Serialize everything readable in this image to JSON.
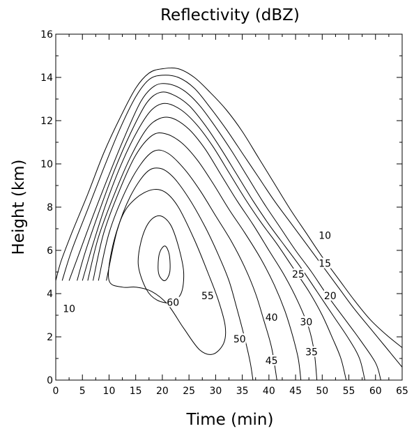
{
  "chart_data": {
    "type": "contour",
    "title": "Reflectivity (dBZ)",
    "xlabel": "Time (min)",
    "ylabel": "Height (km)",
    "xlim": [
      0,
      65
    ],
    "ylim": [
      0,
      16
    ],
    "xticks": [
      "0",
      "5",
      "10",
      "15",
      "20",
      "25",
      "30",
      "35",
      "40",
      "45",
      "50",
      "55",
      "60",
      "65"
    ],
    "yticks": [
      "0",
      "2",
      "4",
      "6",
      "8",
      "10",
      "12",
      "14",
      "16"
    ],
    "levels": [
      10,
      15,
      20,
      25,
      30,
      35,
      40,
      45,
      50,
      55,
      60,
      65
    ],
    "contours": [
      {
        "level": 10,
        "points": [
          [
            0,
            4.6
          ],
          [
            1,
            5.5
          ],
          [
            3,
            6.8
          ],
          [
            6,
            8.6
          ],
          [
            9,
            10.5
          ],
          [
            12,
            12.1
          ],
          [
            15,
            13.5
          ],
          [
            17.5,
            14.2
          ],
          [
            20,
            14.4
          ],
          [
            23,
            14.4
          ],
          [
            26,
            14.0
          ],
          [
            29,
            13.3
          ],
          [
            32,
            12.5
          ],
          [
            35,
            11.5
          ],
          [
            38,
            10.3
          ],
          [
            41,
            9.1
          ],
          [
            44,
            7.9
          ],
          [
            47,
            6.8
          ],
          [
            50,
            5.7
          ],
          [
            53,
            4.7
          ],
          [
            56,
            3.7
          ],
          [
            59,
            2.8
          ],
          [
            62,
            2.1
          ],
          [
            65,
            1.5
          ]
        ]
      },
      {
        "level": 15,
        "points": [
          [
            1.2,
            4.6
          ],
          [
            3,
            6.0
          ],
          [
            6,
            7.9
          ],
          [
            9,
            9.8
          ],
          [
            12,
            11.6
          ],
          [
            15,
            13.1
          ],
          [
            17.5,
            13.9
          ],
          [
            20,
            14.1
          ],
          [
            23,
            14.0
          ],
          [
            26,
            13.5
          ],
          [
            29,
            12.6
          ],
          [
            32,
            11.6
          ],
          [
            35,
            10.5
          ],
          [
            38,
            9.4
          ],
          [
            41,
            8.3
          ],
          [
            44,
            7.3
          ],
          [
            47,
            6.3
          ],
          [
            50,
            5.3
          ],
          [
            53,
            4.3
          ],
          [
            56,
            3.3
          ],
          [
            59,
            2.4
          ],
          [
            62,
            1.5
          ],
          [
            65,
            0.6
          ]
        ]
      },
      {
        "level": 20,
        "points": [
          [
            2.5,
            4.6
          ],
          [
            4,
            5.6
          ],
          [
            7,
            7.6
          ],
          [
            10,
            9.5
          ],
          [
            13,
            11.3
          ],
          [
            16,
            12.9
          ],
          [
            18.5,
            13.6
          ],
          [
            21,
            13.7
          ],
          [
            24,
            13.4
          ],
          [
            27,
            12.7
          ],
          [
            30,
            11.7
          ],
          [
            33,
            10.6
          ],
          [
            36,
            9.4
          ],
          [
            39,
            8.2
          ],
          [
            42,
            7.1
          ],
          [
            45,
            6.0
          ],
          [
            48,
            5.0
          ],
          [
            51,
            3.9
          ],
          [
            54,
            2.9
          ],
          [
            57,
            1.9
          ],
          [
            60,
            0.8
          ],
          [
            61,
            0
          ]
        ]
      },
      {
        "level": 25,
        "points": [
          [
            4,
            4.6
          ],
          [
            5.5,
            5.9
          ],
          [
            8,
            7.7
          ],
          [
            11,
            9.7
          ],
          [
            14,
            11.4
          ],
          [
            17,
            12.8
          ],
          [
            19.5,
            13.3
          ],
          [
            22,
            13.2
          ],
          [
            25,
            12.7
          ],
          [
            28,
            11.8
          ],
          [
            31,
            10.7
          ],
          [
            34,
            9.5
          ],
          [
            37,
            8.3
          ],
          [
            40,
            7.2
          ],
          [
            43,
            6.2
          ],
          [
            46,
            5.2
          ],
          [
            49,
            4.1
          ],
          [
            52,
            3.0
          ],
          [
            55,
            1.9
          ],
          [
            57,
            1.0
          ],
          [
            58,
            0
          ]
        ]
      },
      {
        "level": 30,
        "points": [
          [
            5,
            4.6
          ],
          [
            7,
            6.3
          ],
          [
            9.5,
            8.2
          ],
          [
            12.5,
            10.1
          ],
          [
            15.5,
            11.6
          ],
          [
            18,
            12.5
          ],
          [
            20.5,
            12.8
          ],
          [
            23.5,
            12.5
          ],
          [
            26.5,
            11.8
          ],
          [
            29.5,
            10.8
          ],
          [
            32.5,
            9.6
          ],
          [
            35.5,
            8.4
          ],
          [
            38.5,
            7.3
          ],
          [
            41.5,
            6.3
          ],
          [
            44.5,
            5.2
          ],
          [
            47.5,
            4.1
          ],
          [
            50,
            3.0
          ],
          [
            52,
            1.9
          ],
          [
            53.5,
            1.0
          ],
          [
            54.5,
            0
          ]
        ]
      },
      {
        "level": 35,
        "points": [
          [
            6,
            4.6
          ],
          [
            8,
            6.6
          ],
          [
            11,
            8.6
          ],
          [
            14,
            10.3
          ],
          [
            17,
            11.6
          ],
          [
            19.5,
            12.1
          ],
          [
            22,
            12.1
          ],
          [
            25,
            11.6
          ],
          [
            28,
            10.7
          ],
          [
            31,
            9.5
          ],
          [
            34,
            8.3
          ],
          [
            37,
            7.2
          ],
          [
            40,
            6.0
          ],
          [
            43,
            4.8
          ],
          [
            45.5,
            3.6
          ],
          [
            47.5,
            2.4
          ],
          [
            48.5,
            1.3
          ],
          [
            49,
            0
          ]
        ]
      },
      {
        "level": 40,
        "points": [
          [
            7,
            4.6
          ],
          [
            9,
            6.8
          ],
          [
            12,
            8.8
          ],
          [
            15,
            10.4
          ],
          [
            18,
            11.3
          ],
          [
            20.5,
            11.4
          ],
          [
            23.5,
            11.0
          ],
          [
            26.5,
            10.2
          ],
          [
            29.5,
            9.1
          ],
          [
            32.5,
            7.9
          ],
          [
            35.5,
            6.8
          ],
          [
            38.5,
            5.6
          ],
          [
            41,
            4.4
          ],
          [
            43,
            3.2
          ],
          [
            44.5,
            2.0
          ],
          [
            45.5,
            1.0
          ],
          [
            46,
            0
          ]
        ]
      },
      {
        "level": 45,
        "points": [
          [
            8,
            4.6
          ],
          [
            10,
            6.8
          ],
          [
            13,
            8.7
          ],
          [
            16,
            10.0
          ],
          [
            18.5,
            10.6
          ],
          [
            21,
            10.5
          ],
          [
            24,
            9.8
          ],
          [
            27,
            8.8
          ],
          [
            30,
            7.6
          ],
          [
            33,
            6.4
          ],
          [
            35.5,
            5.2
          ],
          [
            37.5,
            4.0
          ],
          [
            39,
            2.8
          ],
          [
            40.5,
            1.5
          ],
          [
            41.5,
            0
          ]
        ]
      },
      {
        "level": 50,
        "points": [
          [
            9.5,
            4.6
          ],
          [
            11.5,
            6.9
          ],
          [
            14,
            8.5
          ],
          [
            17,
            9.6
          ],
          [
            19.5,
            9.8
          ],
          [
            22,
            9.4
          ],
          [
            25,
            8.4
          ],
          [
            28,
            7.1
          ],
          [
            30.5,
            5.8
          ],
          [
            32.5,
            4.6
          ],
          [
            34,
            3.3
          ],
          [
            35.5,
            1.9
          ],
          [
            36.5,
            0.8
          ],
          [
            37,
            0
          ]
        ]
      },
      {
        "level": 55,
        "points": [
          [
            10,
            4.6
          ],
          [
            10.5,
            6.0
          ],
          [
            12.5,
            7.6
          ],
          [
            15,
            8.4
          ],
          [
            18,
            8.8
          ],
          [
            20.5,
            8.7
          ],
          [
            23,
            8.0
          ],
          [
            26,
            6.5
          ],
          [
            28.5,
            5.0
          ],
          [
            30.5,
            3.7
          ],
          [
            31.8,
            2.5
          ],
          [
            31.5,
            1.7
          ],
          [
            29.5,
            1.2
          ],
          [
            27,
            1.4
          ],
          [
            24,
            2.4
          ],
          [
            21,
            3.5
          ],
          [
            18,
            4.1
          ],
          [
            15,
            4.3
          ],
          [
            12.5,
            4.3
          ],
          [
            10,
            4.6
          ]
        ]
      },
      {
        "level": 60,
        "points": [
          [
            15.5,
            5.3
          ],
          [
            16,
            6.4
          ],
          [
            17.5,
            7.3
          ],
          [
            19.5,
            7.6
          ],
          [
            21.5,
            7.2
          ],
          [
            23,
            6.2
          ],
          [
            24,
            5.0
          ],
          [
            23.5,
            4.0
          ],
          [
            21.5,
            3.6
          ],
          [
            19,
            3.7
          ],
          [
            17,
            4.2
          ],
          [
            15.5,
            5.3
          ]
        ]
      },
      {
        "level": 65,
        "points": [
          [
            19.2,
            5.2
          ],
          [
            19.5,
            5.9
          ],
          [
            20.5,
            6.2
          ],
          [
            21.3,
            5.8
          ],
          [
            21.4,
            5.0
          ],
          [
            20.5,
            4.6
          ],
          [
            19.5,
            4.8
          ],
          [
            19.2,
            5.2
          ]
        ]
      }
    ],
    "labels": [
      {
        "text": "10",
        "x": 2.5,
        "y": 3.3
      },
      {
        "text": "10",
        "x": 50.5,
        "y": 6.7
      },
      {
        "text": "15",
        "x": 50.5,
        "y": 5.4
      },
      {
        "text": "20",
        "x": 51.5,
        "y": 3.9
      },
      {
        "text": "25",
        "x": 45.5,
        "y": 4.9
      },
      {
        "text": "30",
        "x": 47.0,
        "y": 2.7
      },
      {
        "text": "35",
        "x": 48.0,
        "y": 1.3
      },
      {
        "text": "40",
        "x": 40.5,
        "y": 2.9
      },
      {
        "text": "45",
        "x": 40.5,
        "y": 0.9
      },
      {
        "text": "50",
        "x": 34.5,
        "y": 1.9
      },
      {
        "text": "55",
        "x": 28.5,
        "y": 3.9
      },
      {
        "text": "60",
        "x": 22.0,
        "y": 3.6
      }
    ]
  }
}
